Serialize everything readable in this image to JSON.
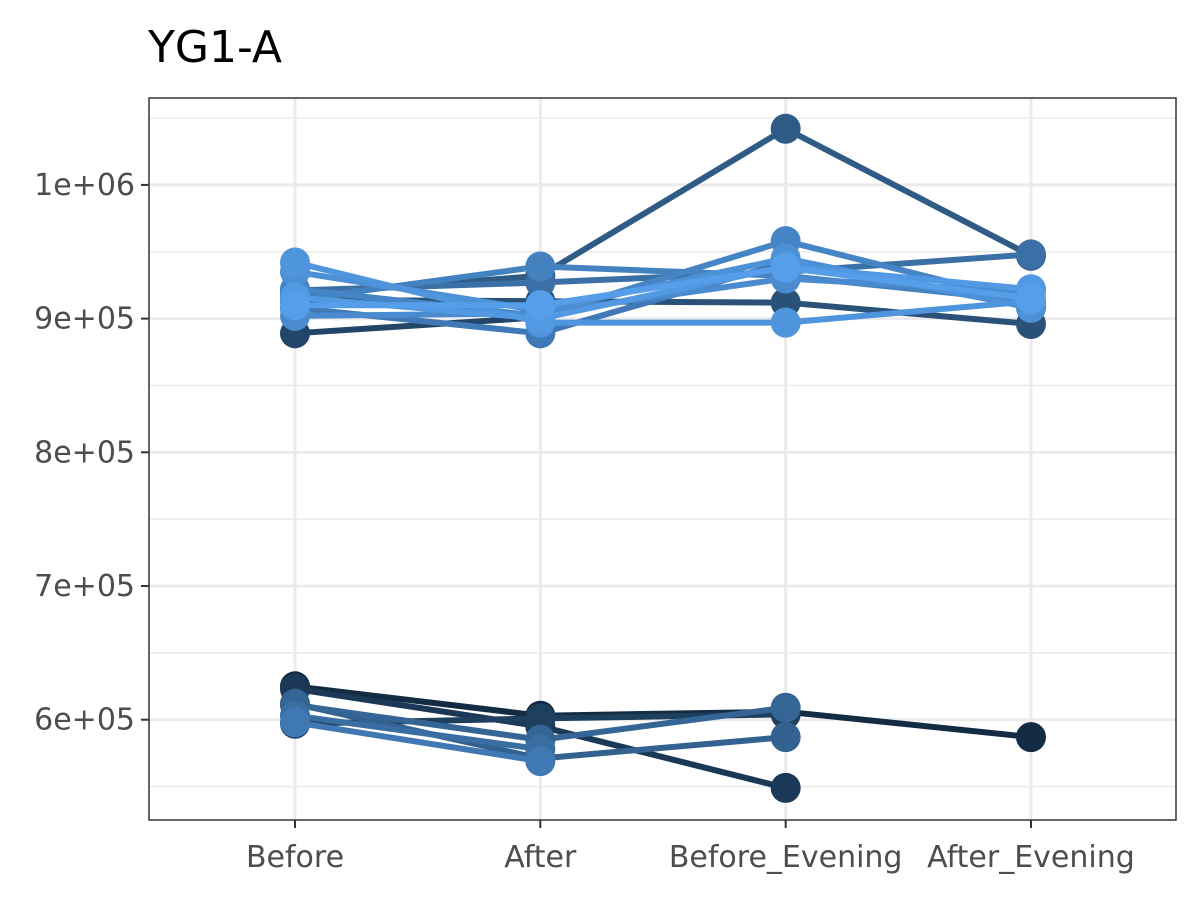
{
  "chart_data": {
    "type": "line",
    "title": "YG1-A",
    "xlabel": "",
    "ylabel": "",
    "categories": [
      "Before",
      "After",
      "Before_Evening",
      "After_Evening"
    ],
    "y_ticks": [
      600000,
      700000,
      800000,
      900000,
      1000000
    ],
    "y_tick_labels": [
      "6e+05",
      "7e+05",
      "8e+05",
      "9e+05",
      "1e+06"
    ],
    "ylim": [
      525000,
      1065000
    ],
    "grid": true,
    "legend": "none",
    "series": [
      {
        "color": "#132b43",
        "values": [
          625000,
          603000,
          606000,
          587000
        ]
      },
      {
        "color": "#1b3956",
        "values": [
          623000,
          595000,
          549000,
          null
        ]
      },
      {
        "color": "#1f3f5e",
        "values": [
          597000,
          601000,
          604000,
          null
        ]
      },
      {
        "color": "#2a5279",
        "values": [
          914000,
          913000,
          912000,
          896000
        ]
      },
      {
        "color": "#22466a",
        "values": [
          889000,
          901000,
          null,
          null
        ]
      },
      {
        "color": "#2f5c87",
        "values": [
          918000,
          932000,
          1042000,
          947000
        ]
      },
      {
        "color": "#336190",
        "values": [
          612000,
          571000,
          587000,
          null
        ]
      },
      {
        "color": "#356595",
        "values": [
          611000,
          585000,
          609000,
          null
        ]
      },
      {
        "color": "#3a6ea3",
        "values": [
          603000,
          578000,
          null,
          null
        ]
      },
      {
        "color": "#3b70a6",
        "values": [
          921000,
          927000,
          935000,
          948000
        ]
      },
      {
        "color": "#3f78b2",
        "values": [
          598000,
          569000,
          null,
          null
        ]
      },
      {
        "color": "#4079b5",
        "values": [
          908000,
          889000,
          942000,
          909000
        ]
      },
      {
        "color": "#4481bf",
        "values": [
          914000,
          939000,
          932000,
          913000
        ]
      },
      {
        "color": "#4585c5",
        "values": [
          922000,
          902000,
          958000,
          912000
        ]
      },
      {
        "color": "#4a8bcf",
        "values": [
          902000,
          904000,
          930000,
          920000
        ]
      },
      {
        "color": "#4c90d6",
        "values": [
          935000,
          906000,
          945000,
          908000
        ]
      },
      {
        "color": "#4f95dd",
        "values": [
          942000,
          897000,
          897000,
          913000
        ]
      },
      {
        "color": "#5299e3",
        "values": [
          916000,
          900000,
          939000,
          922000
        ]
      },
      {
        "color": "#569ee9",
        "values": [
          910000,
          910000,
          938000,
          915000
        ]
      }
    ]
  }
}
